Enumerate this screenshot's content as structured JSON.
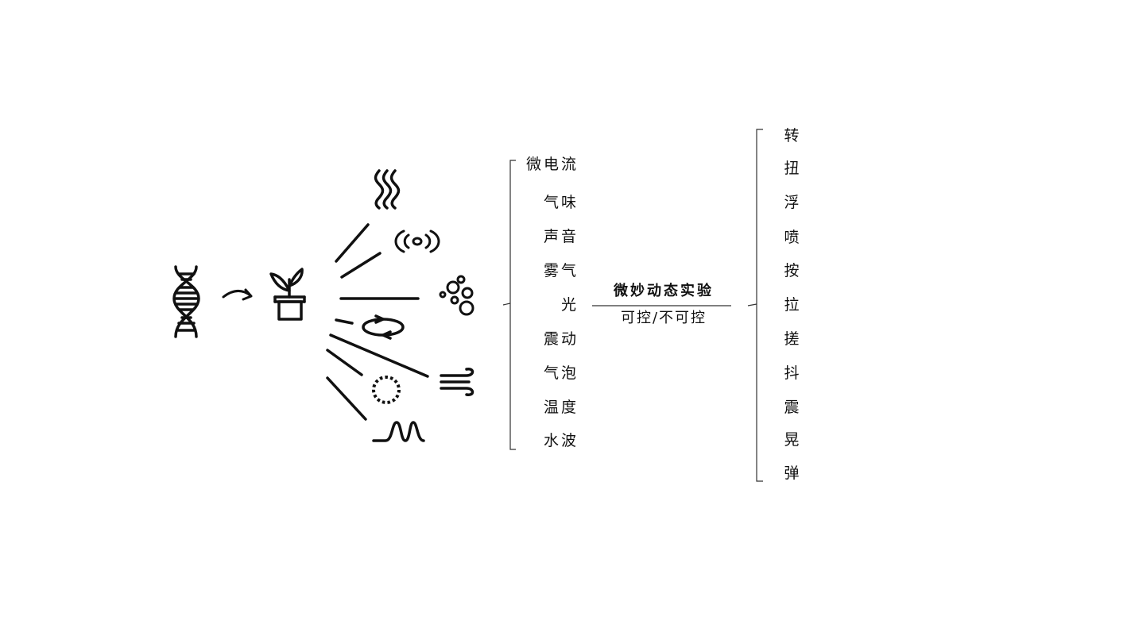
{
  "stimuli": [
    "微电流",
    "气味",
    "声音",
    "雾气",
    "光",
    "震动",
    "气泡",
    "温度",
    "水波"
  ],
  "center": {
    "title": "微妙动态实验",
    "subtitle": "可控/不可控"
  },
  "actions": [
    "转",
    "扭",
    "浮",
    "喷",
    "按",
    "拉",
    "搓",
    "抖",
    "震",
    "晃",
    "弹"
  ],
  "icons": [
    "dna-icon",
    "arrow-icon",
    "potted-plant-icon",
    "heat-waves-icon",
    "sound-ripple-icon",
    "bubbles-icon",
    "rotation-icon",
    "wind-icon",
    "dotted-circle-icon",
    "water-wave-icon"
  ],
  "colors": {
    "stroke": "#111111",
    "background": "#ffffff"
  }
}
